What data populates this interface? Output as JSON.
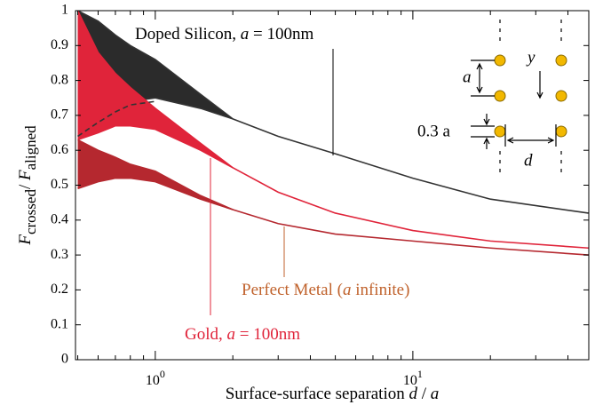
{
  "chart_data": {
    "type": "line",
    "log_x": true,
    "xlim": [
      0.49,
      48.2
    ],
    "ylim": [
      0,
      1
    ],
    "xticks": [
      {
        "value": 1,
        "label": "10",
        "exp": "0"
      },
      {
        "value": 10,
        "label": "10",
        "exp": "1"
      }
    ],
    "xminor": [
      0.5,
      0.6,
      0.7,
      0.8,
      0.9,
      2,
      3,
      4,
      5,
      6,
      7,
      8,
      9,
      20,
      30,
      40
    ],
    "yticks": [
      0,
      0.1,
      0.2,
      0.3,
      0.4,
      0.5,
      0.6,
      0.7,
      0.8,
      0.9,
      1
    ],
    "xlabel": [
      "Surface-surface separation ",
      "d",
      " / ",
      "a"
    ],
    "ylabel": [
      "F",
      "crossed",
      "/ ",
      "F",
      "aligned"
    ],
    "x": [
      0.5,
      0.6,
      0.7,
      0.8,
      1,
      1.5,
      2,
      3,
      5,
      10,
      20,
      48
    ],
    "series": [
      {
        "color": "#333333",
        "fill": "#2b2b2b",
        "upper": [
          1.0,
          0.97,
          0.93,
          0.9,
          0.86,
          0.76,
          0.69,
          null,
          null,
          null,
          null,
          null
        ],
        "values": [
          0.64,
          0.69,
          0.72,
          0.74,
          0.75,
          0.72,
          0.69,
          0.64,
          0.59,
          0.52,
          0.46,
          0.42
        ]
      },
      {
        "color": "#e0243a",
        "fill": "#e0243a",
        "upper": [
          1.0,
          0.88,
          0.82,
          0.78,
          0.72,
          0.62,
          0.55,
          null,
          null,
          null,
          null,
          null
        ],
        "values": [
          0.63,
          0.65,
          0.67,
          0.67,
          0.66,
          0.6,
          0.55,
          0.48,
          0.42,
          0.37,
          0.34,
          0.32
        ]
      },
      {
        "color": "#b5282f",
        "fill": "#b5282f",
        "upper": [
          0.63,
          0.6,
          0.58,
          0.56,
          0.54,
          0.47,
          0.43,
          null,
          null,
          null,
          null,
          null
        ],
        "values": [
          0.49,
          0.51,
          0.52,
          0.52,
          0.51,
          0.46,
          0.43,
          0.39,
          0.36,
          0.34,
          0.32,
          0.3
        ]
      },
      {
        "color": "#333333",
        "dash": "6,4",
        "values": [
          0.64,
          0.68,
          0.71,
          0.73,
          0.74,
          null,
          null,
          null,
          null,
          null,
          null,
          null
        ]
      }
    ],
    "annotations": [
      {
        "parts": [
          "Doped Silicon, ",
          "a",
          " = 100nm"
        ],
        "color": "#000000"
      },
      {
        "parts": [
          "Gold, ",
          "a",
          " = 100nm"
        ],
        "color": "#e0243a"
      },
      {
        "parts": [
          "Perfect Metal (",
          "a",
          " infinite)"
        ],
        "color": "#c0622c"
      }
    ],
    "inset": {
      "a": "a",
      "y": "y",
      "offset": "0.3 a",
      "d": "d"
    }
  }
}
